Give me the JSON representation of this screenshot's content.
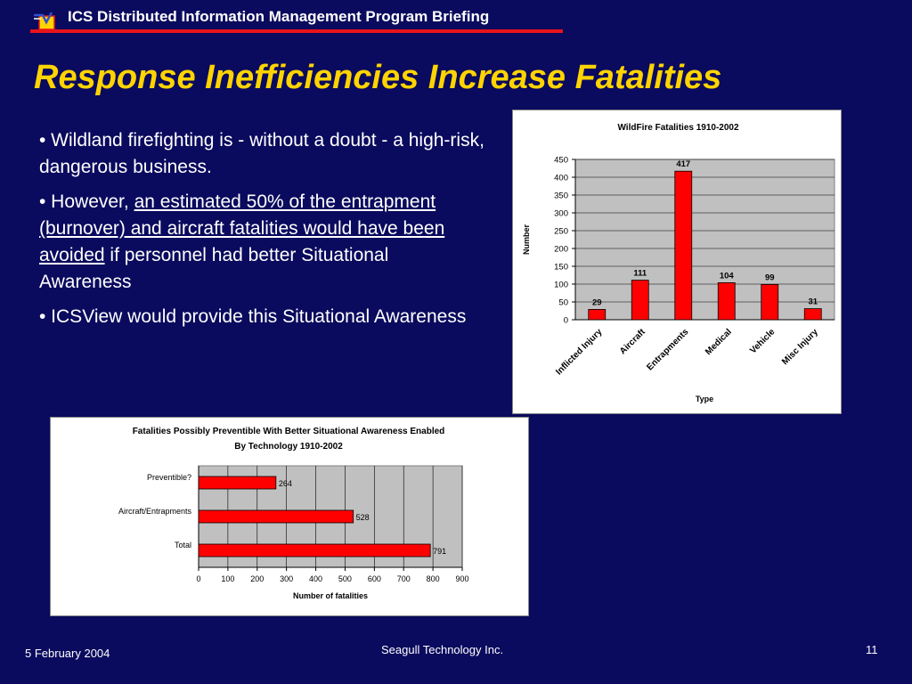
{
  "header": {
    "title": "ICS Distributed Information Management Program Briefing"
  },
  "slide_title": "Response Inefficiencies Increase Fatalities",
  "bullets": {
    "b1": "• Wildland firefighting is - without a doubt - a high-risk, dangerous business.",
    "b2_prefix": "• However, ",
    "b2_underlined": "an estimated 50% of the entrapment (burnover) and aircraft fatalities would have been avoided",
    "b2_suffix": " if personnel had better Situational Awareness",
    "b3": "• ICSView would provide this Situational Awareness"
  },
  "footer": {
    "date": "5 February  2004",
    "company": "Seagull Technology Inc.",
    "page": "11"
  },
  "colors": {
    "background": "#0a0a5e",
    "title": "#ffd400",
    "rule": "#e8141a",
    "bar": "#ff0000",
    "plot_bg": "#c0c0c0"
  },
  "chart_data": [
    {
      "type": "bar",
      "title": "WildFire Fatalities 1910-2002",
      "xlabel": "Type",
      "ylabel": "Number",
      "categories": [
        "Inflicted Injury",
        "Aircraft",
        "Entrapments",
        "Medical",
        "Vehicle",
        "Misc Injury"
      ],
      "values": [
        29,
        111,
        417,
        104,
        99,
        31
      ],
      "ylim": [
        0,
        450
      ],
      "yticks": [
        0,
        50,
        100,
        150,
        200,
        250,
        300,
        350,
        400,
        450
      ],
      "grid": "horizontal",
      "legend": "none"
    },
    {
      "type": "bar",
      "orientation": "horizontal",
      "title": "Fatalities Possibly Preventible With Better Situational Awareness Enabled",
      "subtitle": "By Technology 1910-2002",
      "xlabel": "Number of fatalities",
      "categories": [
        "Preventible?",
        "Aircraft/Entrapments",
        "Total"
      ],
      "values": [
        264,
        528,
        791
      ],
      "xlim": [
        0,
        900
      ],
      "xticks": [
        0,
        100,
        200,
        300,
        400,
        500,
        600,
        700,
        800,
        900
      ],
      "grid": "vertical",
      "legend": "none"
    }
  ]
}
